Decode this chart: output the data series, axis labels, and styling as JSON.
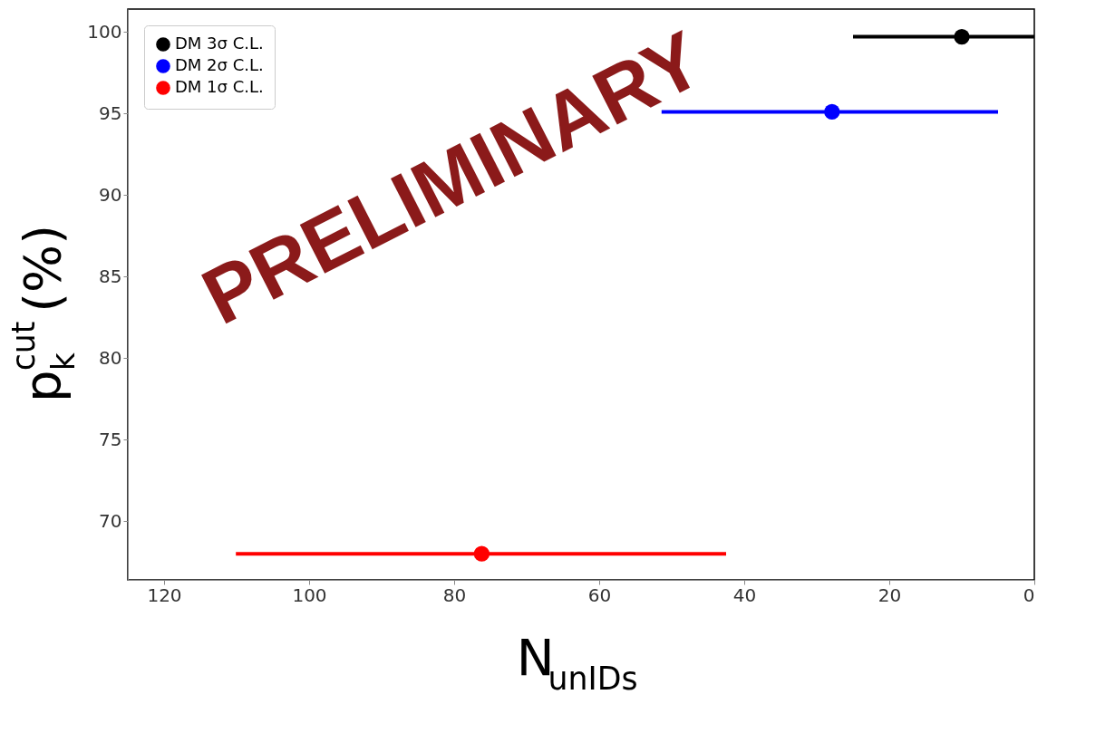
{
  "chart_data": {
    "type": "scatter",
    "xlabel": "N$_{unIDs}$",
    "ylabel": "p$_{k}$$^{cut}$ (%)",
    "xlim": [
      125,
      0
    ],
    "ylim": [
      66.4,
      101.4
    ],
    "xticks": [
      120,
      100,
      80,
      60,
      40,
      20,
      0
    ],
    "yticks": [
      70,
      75,
      80,
      85,
      90,
      95,
      100
    ],
    "grid": false,
    "legend": "top left",
    "marker": "circle",
    "annotations": [
      "PRELIMINARY"
    ],
    "series": [
      {
        "name": "DM 3σ C.L.",
        "color": "#000000",
        "x": [
          10.0
        ],
        "values": [
          99.7
        ],
        "xerrors": [
          [
            0,
            25.0
          ]
        ]
      },
      {
        "name": "DM 2σ C.L.",
        "color": "#0000ff",
        "x": [
          27.9
        ],
        "values": [
          95.1
        ],
        "xerrors": [
          [
            5.0,
            51.4
          ]
        ]
      },
      {
        "name": "DM 1σ C.L.",
        "color": "#ff0000",
        "x": [
          76.2
        ],
        "values": [
          68.0
        ],
        "xerrors": [
          [
            42.5,
            110.1
          ]
        ]
      }
    ]
  }
}
